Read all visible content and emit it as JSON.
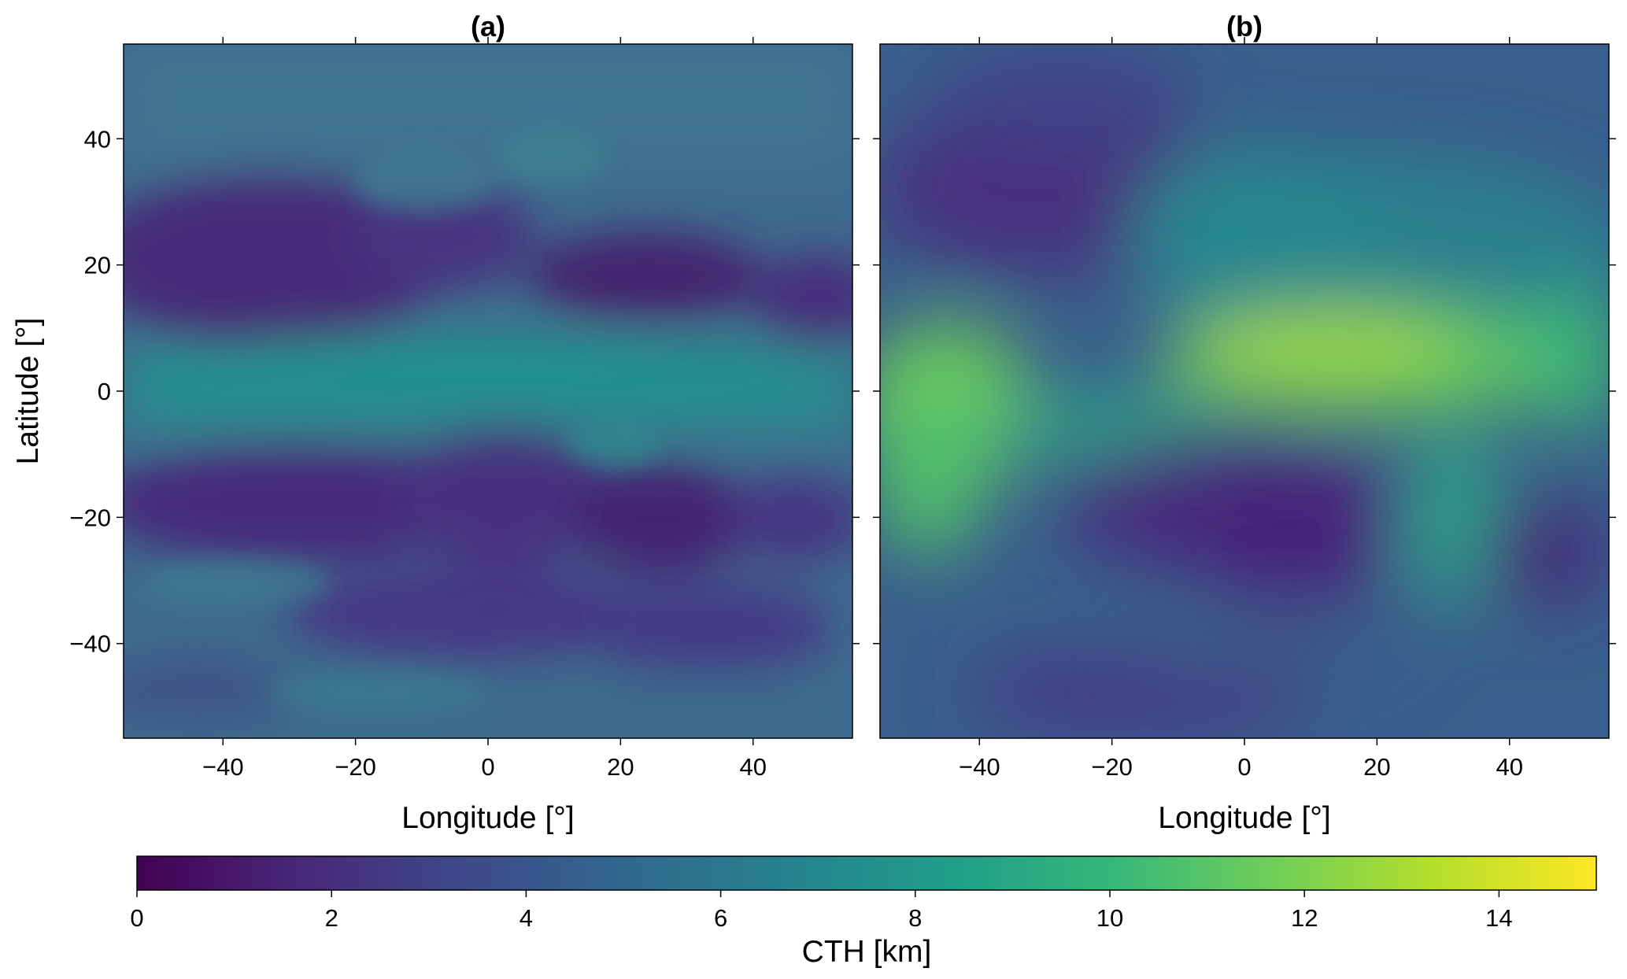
{
  "chart_data": {
    "type": "heatmap",
    "panels": [
      {
        "title": "(a)",
        "xlabel": "Longitude [°]",
        "ylabel": "Latitude [°]",
        "xlim": [
          -55,
          55
        ],
        "ylim": [
          -55,
          55
        ],
        "xticks": [
          -40,
          -20,
          0,
          20,
          40
        ],
        "yticks": [
          40,
          20,
          0,
          -20,
          -40
        ],
        "xtick_labels": [
          "−40",
          "−20",
          "0",
          "20",
          "40"
        ],
        "ytick_labels": [
          "40",
          "20",
          "0",
          "−20",
          "−40"
        ],
        "description_values": {
          "tropical_band_cth_km": 6.5,
          "subtropical_low_cth_km": 2.5,
          "extratropics_cth_km": 5.5
        }
      },
      {
        "title": "(b)",
        "xlabel": "Longitude [°]",
        "ylabel": "",
        "xlim": [
          -55,
          55
        ],
        "ylim": [
          -55,
          55
        ],
        "xticks": [
          -40,
          -20,
          0,
          20,
          40
        ],
        "yticks": [
          40,
          20,
          0,
          -20,
          -40
        ],
        "xtick_labels": [
          "−40",
          "−20",
          "0",
          "20",
          "40"
        ],
        "ytick_labels": [],
        "description_values": {
          "itcz_africa_cth_km": 11.5,
          "south_atlantic_min_cth_km": 2.5,
          "background_cth_km": 5.0
        }
      }
    ],
    "colorbar": {
      "label": "CTH [km]",
      "range": [
        0,
        15
      ],
      "ticks": [
        0,
        2,
        4,
        6,
        8,
        10,
        12,
        14
      ],
      "tick_labels": [
        "0",
        "2",
        "4",
        "6",
        "8",
        "10",
        "12",
        "14"
      ],
      "colormap": "viridis",
      "stops": [
        "#440154",
        "#482878",
        "#3e4989",
        "#31688e",
        "#26828e",
        "#1f9e89",
        "#35b779",
        "#6ece58",
        "#b5de2b",
        "#fde725"
      ]
    }
  }
}
